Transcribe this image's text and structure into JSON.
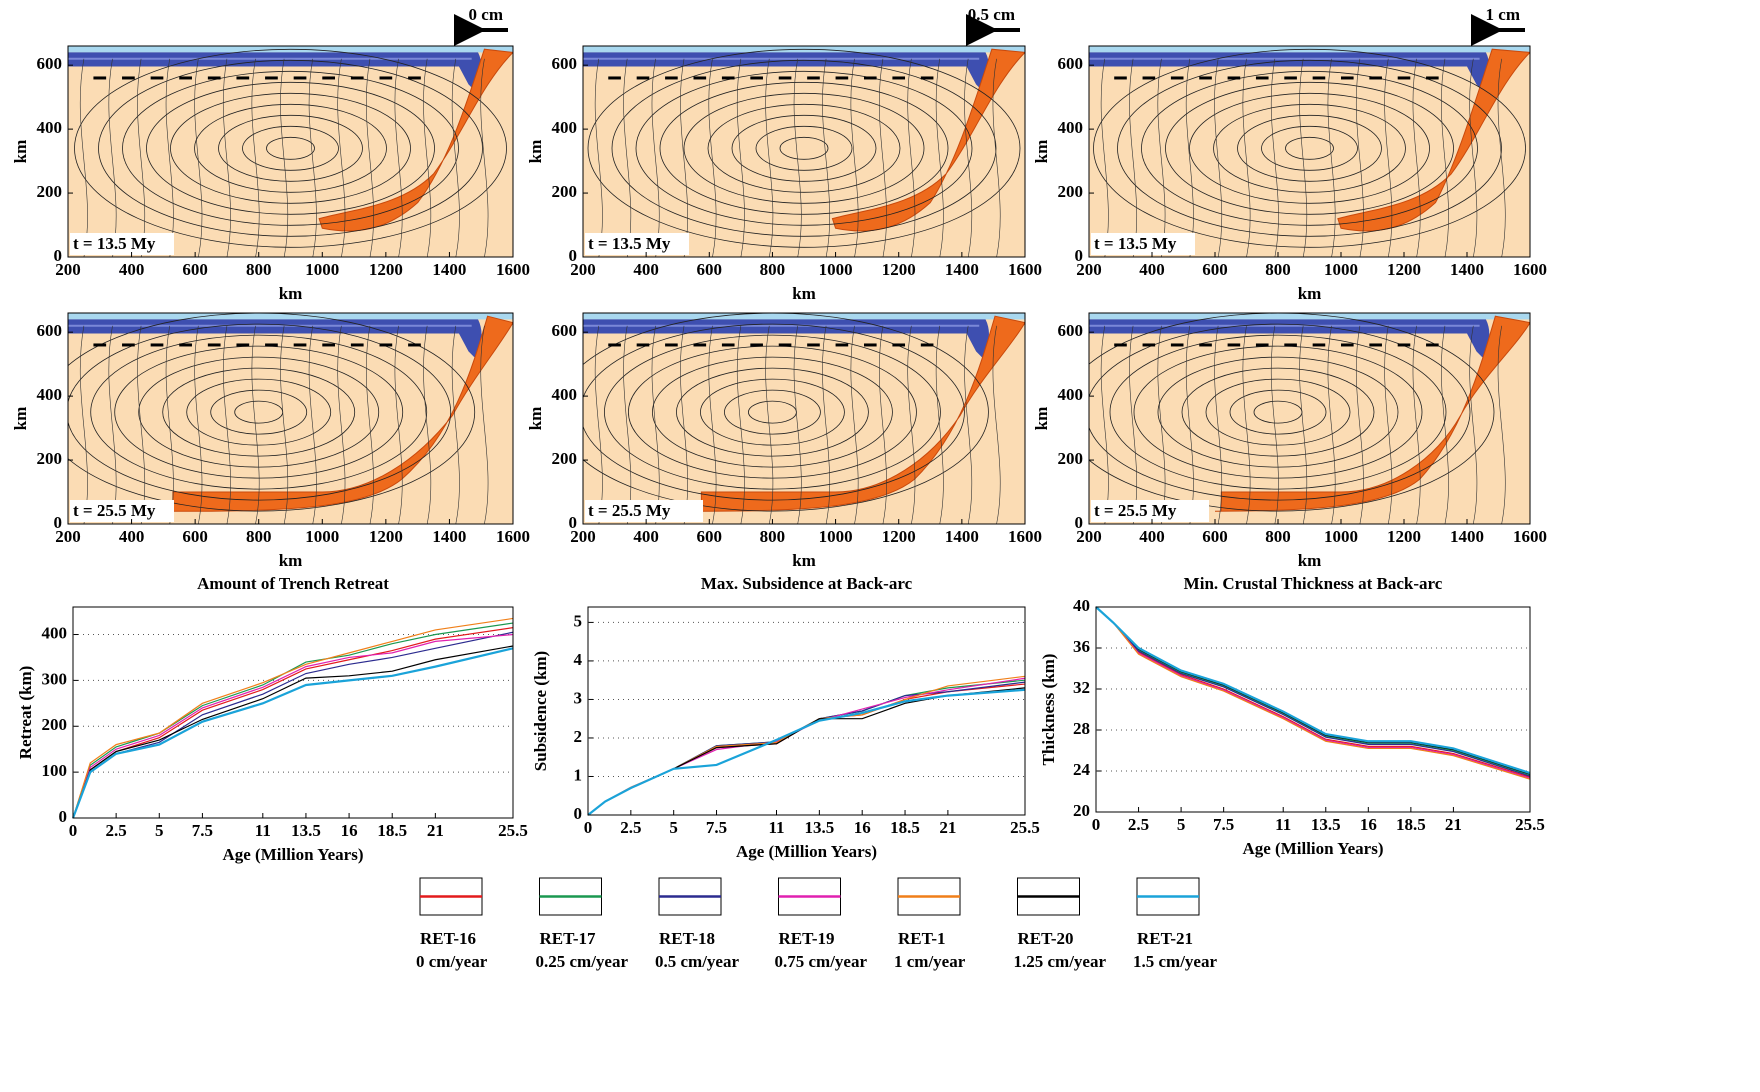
{
  "chart_data": [
    {
      "type": "field",
      "xlabel": "km",
      "ylabel": "km",
      "xlim": [
        200,
        1600
      ],
      "ylim": [
        0,
        660
      ],
      "xticks": [
        200,
        400,
        600,
        800,
        1000,
        1200,
        1400,
        1600
      ],
      "yticks": [
        0,
        200,
        400,
        600
      ],
      "annotation": "t = 13.5 My",
      "plate_velocity": "0 cm"
    },
    {
      "type": "field",
      "xlabel": "km",
      "ylabel": "km",
      "xlim": [
        200,
        1600
      ],
      "ylim": [
        0,
        660
      ],
      "xticks": [
        200,
        400,
        600,
        800,
        1000,
        1200,
        1400,
        1600
      ],
      "yticks": [
        0,
        200,
        400,
        600
      ],
      "annotation": "t = 13.5 My",
      "plate_velocity": "0.5 cm"
    },
    {
      "type": "field",
      "xlabel": "km",
      "ylabel": "km",
      "xlim": [
        200,
        1600
      ],
      "ylim": [
        0,
        660
      ],
      "xticks": [
        200,
        400,
        600,
        800,
        1000,
        1200,
        1400,
        1600
      ],
      "yticks": [
        0,
        200,
        400,
        600
      ],
      "annotation": "t = 13.5 My",
      "plate_velocity": "1 cm"
    },
    {
      "type": "field",
      "xlabel": "km",
      "ylabel": "km",
      "xlim": [
        200,
        1600
      ],
      "ylim": [
        0,
        660
      ],
      "xticks": [
        200,
        400,
        600,
        800,
        1000,
        1200,
        1400,
        1600
      ],
      "yticks": [
        0,
        200,
        400,
        600
      ],
      "annotation": "t = 25.5 My"
    },
    {
      "type": "field",
      "xlabel": "km",
      "ylabel": "km",
      "xlim": [
        200,
        1600
      ],
      "ylim": [
        0,
        660
      ],
      "xticks": [
        200,
        400,
        600,
        800,
        1000,
        1200,
        1400,
        1600
      ],
      "yticks": [
        0,
        200,
        400,
        600
      ],
      "annotation": "t = 25.5 My"
    },
    {
      "type": "field",
      "xlabel": "km",
      "ylabel": "km",
      "xlim": [
        200,
        1600
      ],
      "ylim": [
        0,
        660
      ],
      "xticks": [
        200,
        400,
        600,
        800,
        1000,
        1200,
        1400,
        1600
      ],
      "yticks": [
        0,
        200,
        400,
        600
      ],
      "annotation": "t = 25.5 My"
    },
    {
      "type": "line",
      "title": "Amount of Trench Retreat",
      "xlabel": "Age (Million Years)",
      "ylabel": "Retreat (km)",
      "xlim": [
        0,
        25.5
      ],
      "ylim": [
        0,
        460
      ],
      "xticks": [
        0,
        2.5,
        5,
        7.5,
        11,
        13.5,
        16,
        18.5,
        21,
        25.5
      ],
      "yticks": [
        0,
        100,
        200,
        300,
        400
      ],
      "grid": true,
      "x": [
        0,
        1,
        2.5,
        5,
        7.5,
        11,
        13.5,
        16,
        18.5,
        21,
        25.5
      ],
      "series": [
        {
          "name": "RET-16",
          "rate": "0 cm/year",
          "color": "#e31a1c",
          "values": [
            0,
            105,
            145,
            175,
            235,
            280,
            325,
            345,
            365,
            390,
            415
          ]
        },
        {
          "name": "RET-17",
          "rate": "0.25 cm/year",
          "color": "#1a9850",
          "values": [
            0,
            115,
            155,
            185,
            245,
            290,
            340,
            355,
            380,
            400,
            425
          ]
        },
        {
          "name": "RET-18",
          "rate": "0.5 cm/year",
          "color": "#2b2b8f",
          "values": [
            0,
            100,
            140,
            165,
            225,
            270,
            315,
            335,
            350,
            370,
            405
          ]
        },
        {
          "name": "RET-19",
          "rate": "0.75 cm/year",
          "color": "#e020b0",
          "values": [
            0,
            110,
            150,
            180,
            240,
            285,
            330,
            350,
            360,
            385,
            400
          ]
        },
        {
          "name": "RET-1",
          "rate": "1 cm/year",
          "color": "#f07f18",
          "values": [
            0,
            120,
            160,
            185,
            250,
            295,
            335,
            360,
            385,
            410,
            435
          ]
        },
        {
          "name": "RET-20",
          "rate": "1.25 cm/year",
          "color": "#000000",
          "values": [
            0,
            105,
            145,
            170,
            215,
            260,
            305,
            310,
            320,
            345,
            375
          ]
        },
        {
          "name": "RET-21",
          "rate": "1.5 cm/year",
          "color": "#1aa3d9",
          "values": [
            0,
            100,
            140,
            160,
            210,
            250,
            290,
            300,
            310,
            330,
            370
          ]
        }
      ]
    },
    {
      "type": "line",
      "title": "Max. Subsidence at Back-arc",
      "xlabel": "Age (Million Years)",
      "ylabel": "Subsidence (km)",
      "xlim": [
        0,
        25.5
      ],
      "ylim": [
        0,
        5.4
      ],
      "xticks": [
        0,
        2.5,
        5,
        7.5,
        11,
        13.5,
        16,
        18.5,
        21,
        25.5
      ],
      "yticks": [
        0,
        1,
        2,
        3,
        4,
        5
      ],
      "grid": true,
      "x": [
        0,
        1,
        2.5,
        5,
        7.5,
        11,
        13.5,
        16,
        18.5,
        21,
        25.5
      ],
      "series": [
        {
          "name": "RET-16",
          "color": "#e31a1c",
          "values": [
            0,
            0.35,
            0.7,
            1.2,
            1.75,
            1.85,
            2.5,
            2.6,
            3.0,
            3.2,
            3.4
          ]
        },
        {
          "name": "RET-17",
          "color": "#1a9850",
          "values": [
            0,
            0.35,
            0.7,
            1.2,
            1.8,
            1.9,
            2.5,
            2.7,
            3.1,
            3.3,
            3.5
          ]
        },
        {
          "name": "RET-18",
          "color": "#2b2b8f",
          "values": [
            0,
            0.35,
            0.7,
            1.2,
            1.8,
            1.9,
            2.5,
            2.7,
            3.1,
            3.2,
            3.45
          ]
        },
        {
          "name": "RET-19",
          "color": "#e020b0",
          "values": [
            0,
            0.35,
            0.72,
            1.2,
            1.7,
            1.9,
            2.45,
            2.75,
            3.05,
            3.25,
            3.55
          ]
        },
        {
          "name": "RET-1",
          "color": "#f07f18",
          "values": [
            0,
            0.35,
            0.72,
            1.2,
            1.78,
            1.88,
            2.5,
            2.6,
            3.0,
            3.35,
            3.6
          ]
        },
        {
          "name": "RET-20",
          "color": "#000000",
          "values": [
            0,
            0.35,
            0.7,
            1.2,
            1.75,
            1.85,
            2.5,
            2.5,
            2.9,
            3.1,
            3.3
          ]
        },
        {
          "name": "RET-21",
          "color": "#1aa3d9",
          "values": [
            0,
            0.35,
            0.7,
            1.2,
            1.3,
            1.95,
            2.45,
            2.65,
            2.95,
            3.1,
            3.25
          ]
        }
      ]
    },
    {
      "type": "line",
      "title": "Min. Crustal Thickness at Back-arc",
      "xlabel": "Age (Million Years)",
      "ylabel": "Thickness (km)",
      "xlim": [
        0,
        25.5
      ],
      "ylim": [
        20,
        40
      ],
      "xticks": [
        0,
        2.5,
        5,
        7.5,
        11,
        13.5,
        16,
        18.5,
        21,
        25.5
      ],
      "yticks": [
        20,
        24,
        28,
        32,
        36,
        40
      ],
      "grid": true,
      "x": [
        0,
        1,
        2.5,
        5,
        7.5,
        11,
        13.5,
        16,
        18.5,
        21,
        25.5
      ],
      "series": [
        {
          "name": "RET-16",
          "color": "#e31a1c",
          "values": [
            40,
            38.5,
            35.6,
            33.4,
            32.0,
            29.3,
            27.1,
            26.4,
            26.4,
            25.7,
            23.4
          ]
        },
        {
          "name": "RET-17",
          "color": "#1a9850",
          "values": [
            40,
            38.5,
            35.8,
            33.6,
            32.3,
            29.6,
            27.4,
            26.7,
            26.7,
            26.0,
            23.6
          ]
        },
        {
          "name": "RET-18",
          "color": "#2b2b8f",
          "values": [
            40,
            38.5,
            35.7,
            33.5,
            32.2,
            29.5,
            27.3,
            26.6,
            26.6,
            25.9,
            23.5
          ]
        },
        {
          "name": "RET-19",
          "color": "#e020b0",
          "values": [
            40,
            38.5,
            35.5,
            33.3,
            31.9,
            29.2,
            27.0,
            26.3,
            26.3,
            25.6,
            23.3
          ]
        },
        {
          "name": "RET-1",
          "color": "#f07f18",
          "values": [
            40,
            38.5,
            35.4,
            33.2,
            31.8,
            29.1,
            26.9,
            26.2,
            26.2,
            25.5,
            23.2
          ]
        },
        {
          "name": "RET-20",
          "color": "#000000",
          "values": [
            40,
            38.5,
            35.9,
            33.7,
            32.4,
            29.7,
            27.5,
            26.8,
            26.8,
            26.1,
            23.7
          ]
        },
        {
          "name": "RET-21",
          "color": "#1aa3d9",
          "values": [
            40,
            38.5,
            36.0,
            33.8,
            32.5,
            29.8,
            27.6,
            26.9,
            26.9,
            26.2,
            23.8
          ]
        }
      ]
    }
  ]
}
